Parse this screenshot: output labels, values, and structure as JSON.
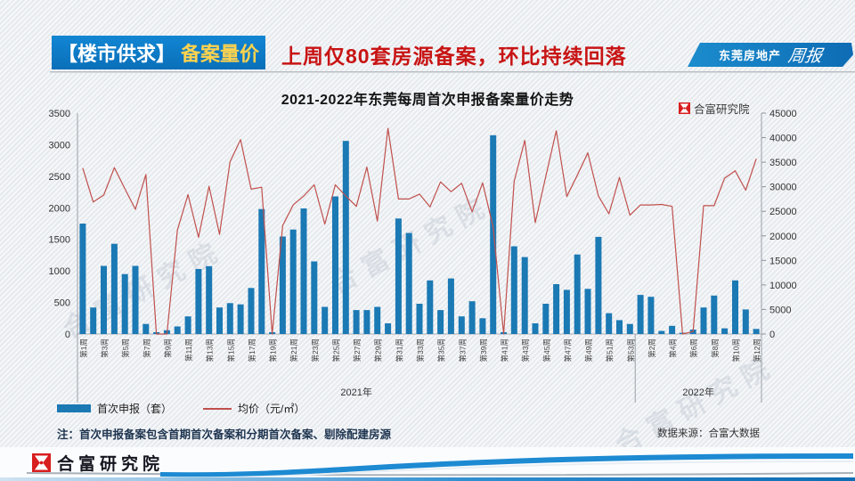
{
  "page": {
    "background": "#eef1f4"
  },
  "header": {
    "section_label": "【楼市供求】",
    "section_topic": "备案量价",
    "headline": "上周仅80套房源备案，环比持续回落",
    "banner_text": "东莞房地产",
    "banner_script": "周报",
    "chip_color": "#0d79c6",
    "topic_color": "#ffd34d",
    "headline_color": "#c81414"
  },
  "chart": {
    "brand_name": "合富研究院",
    "watermark_text": "合富研究院"
  },
  "chart_data": {
    "type": "bar+line",
    "title": "2021-2022年东莞每周首次申报备案量价走势",
    "groups": [
      {
        "year_label": "2021年",
        "weeks": 53,
        "first_tick_index": 0,
        "tick_labels": [
          "第1周",
          "第3周",
          "第5周",
          "第7周",
          "第9周",
          "第11周",
          "第13周",
          "第15周",
          "第17周",
          "第19周",
          "第21周",
          "第23周",
          "第25周",
          "第27周",
          "第29周",
          "第31周",
          "第33周",
          "第35周",
          "第37周",
          "第39周",
          "第41周",
          "第43周",
          "第45周",
          "第47周",
          "第49周",
          "第51周",
          "第53周"
        ]
      },
      {
        "year_label": "2022年",
        "weeks": 12,
        "first_tick_index": 1,
        "tick_labels": [
          "第2周",
          "第4周",
          "第6周",
          "第8周",
          "第10周",
          "第12周"
        ]
      }
    ],
    "left_axis": {
      "min": 0,
      "max": 3500,
      "step": 500
    },
    "right_axis": {
      "min": 0,
      "max": 45000,
      "step": 5000
    },
    "series": [
      {
        "name": "首次申报（套）",
        "type": "bar",
        "axis": "left",
        "color": "#1b79b4",
        "values": [
          1750,
          420,
          1080,
          1430,
          950,
          1080,
          160,
          30,
          60,
          120,
          280,
          1030,
          1075,
          420,
          490,
          470,
          730,
          1980,
          30,
          1545,
          1655,
          1990,
          1150,
          430,
          2180,
          3060,
          380,
          380,
          430,
          170,
          1830,
          1600,
          480,
          850,
          380,
          880,
          280,
          520,
          250,
          3150,
          30,
          1390,
          1220,
          170,
          480,
          790,
          700,
          1260,
          715,
          1540,
          330,
          220,
          160,
          620,
          590,
          50,
          130,
          20,
          70,
          420,
          610,
          90,
          850,
          390,
          80
        ]
      },
      {
        "name": "均价（元/㎡）",
        "type": "line",
        "axis": "right",
        "color": "#c0504d",
        "values": [
          33800,
          26900,
          28300,
          33900,
          29600,
          25400,
          32500,
          0,
          0,
          21200,
          28400,
          19700,
          30100,
          20300,
          35100,
          39600,
          29500,
          29900,
          0,
          22100,
          26300,
          28100,
          30400,
          22400,
          30400,
          28100,
          26000,
          34000,
          23000,
          41900,
          27500,
          27500,
          28500,
          25900,
          31000,
          29000,
          30700,
          24900,
          30800,
          21800,
          0,
          31100,
          39450,
          22700,
          32100,
          41400,
          28000,
          32350,
          36900,
          28100,
          24500,
          31900,
          24200,
          26300,
          26300,
          26400,
          26000,
          0,
          500,
          26150,
          26150,
          31750,
          33250,
          29300,
          35700
        ]
      }
    ],
    "legend_position": "bottom-left",
    "grid": false
  },
  "legend": {
    "volume_label": "首次申报（套）",
    "price_label": "均价（元/㎡）"
  },
  "note": "注：首次申报备案包含首期首次备案和分期首次备案、剔除配建房源",
  "source": "数据来源：合富大数据",
  "footer": {
    "brand": "合富研究院"
  }
}
